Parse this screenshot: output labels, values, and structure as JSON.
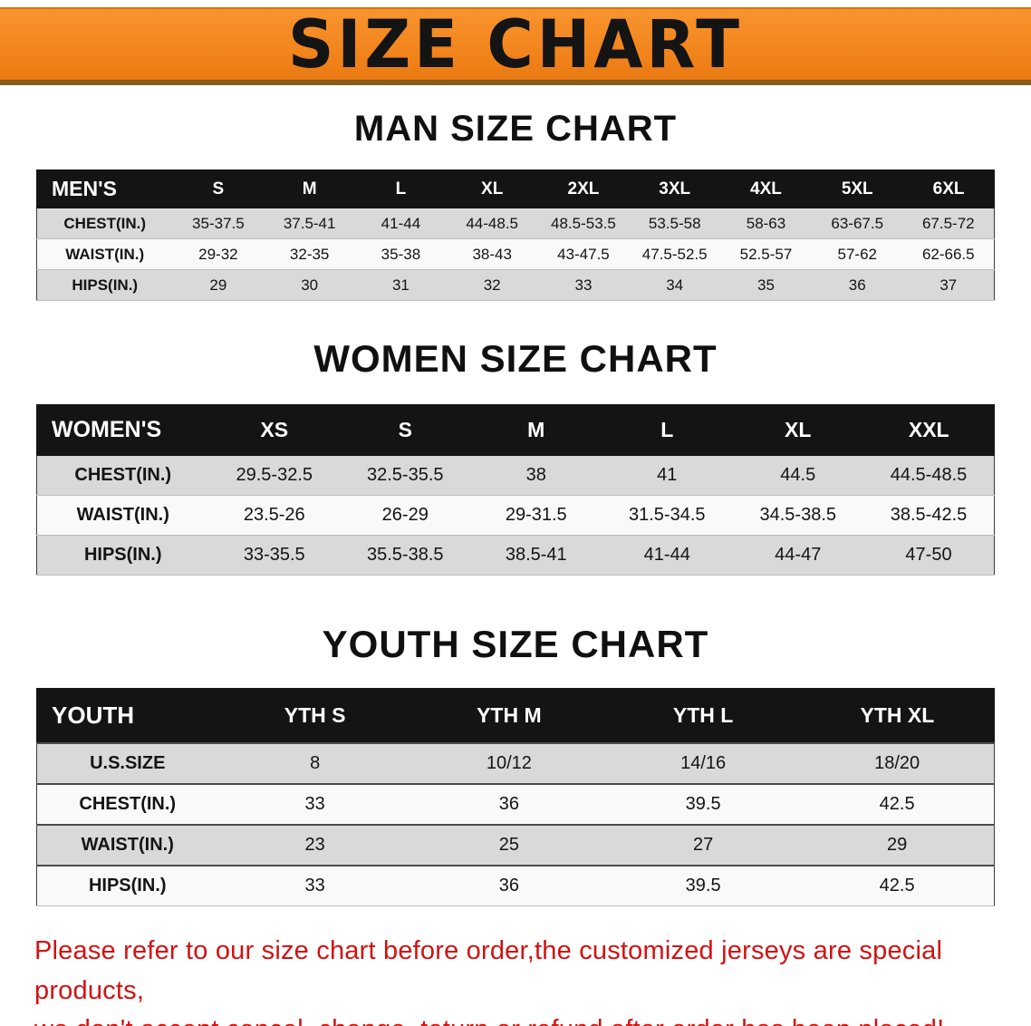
{
  "banner": {
    "title": "SIZE CHART"
  },
  "sections": [
    {
      "heading": "MAN SIZE CHART",
      "table": {
        "header": [
          "MEN'S",
          "S",
          "M",
          "L",
          "XL",
          "2XL",
          "3XL",
          "4XL",
          "5XL",
          "6XL"
        ],
        "rows": [
          [
            "CHEST(IN.)",
            "35-37.5",
            "37.5-41",
            "41-44",
            "44-48.5",
            "48.5-53.5",
            "53.5-58",
            "58-63",
            "63-67.5",
            "67.5-72"
          ],
          [
            "WAIST(IN.)",
            "29-32",
            "32-35",
            "35-38",
            "38-43",
            "43-47.5",
            "47.5-52.5",
            "52.5-57",
            "57-62",
            "62-66.5"
          ],
          [
            "HIPS(IN.)",
            "29",
            "30",
            "31",
            "32",
            "33",
            "34",
            "35",
            "36",
            "37"
          ]
        ]
      }
    },
    {
      "heading": "WOMEN SIZE CHART",
      "table": {
        "header": [
          "WOMEN'S",
          "XS",
          "S",
          "M",
          "L",
          "XL",
          "XXL"
        ],
        "rows": [
          [
            "CHEST(IN.)",
            "29.5-32.5",
            "32.5-35.5",
            "38",
            "41",
            "44.5",
            "44.5-48.5"
          ],
          [
            "WAIST(IN.)",
            "23.5-26",
            "26-29",
            "29-31.5",
            "31.5-34.5",
            "34.5-38.5",
            "38.5-42.5"
          ],
          [
            "HIPS(IN.)",
            "33-35.5",
            "35.5-38.5",
            "38.5-41",
            "41-44",
            "44-47",
            "47-50"
          ]
        ]
      }
    },
    {
      "heading": "YOUTH SIZE CHART",
      "table": {
        "header": [
          "YOUTH",
          "YTH S",
          "YTH M",
          "YTH L",
          "YTH XL"
        ],
        "rows": [
          [
            "U.S.SIZE",
            "8",
            "10/12",
            "14/16",
            "18/20"
          ],
          [
            "CHEST(IN.)",
            "33",
            "36",
            "39.5",
            "42.5"
          ],
          [
            "WAIST(IN.)",
            "23",
            "25",
            "27",
            "29"
          ],
          [
            "HIPS(IN.)",
            "33",
            "36",
            "39.5",
            "42.5"
          ]
        ]
      }
    }
  ],
  "disclaimer": {
    "lines": [
      "Please refer to our size chart before order,the customized jerseys are special products,",
      "we don't accept cancel, change, teturn or refund after order has been placed!"
    ]
  },
  "colors": {
    "banner_orange": "#f1821a",
    "header_black": "#141414",
    "row_gray": "#d9d9d9",
    "row_light": "#f9f9f9",
    "disclaimer_red": "#d21212"
  }
}
